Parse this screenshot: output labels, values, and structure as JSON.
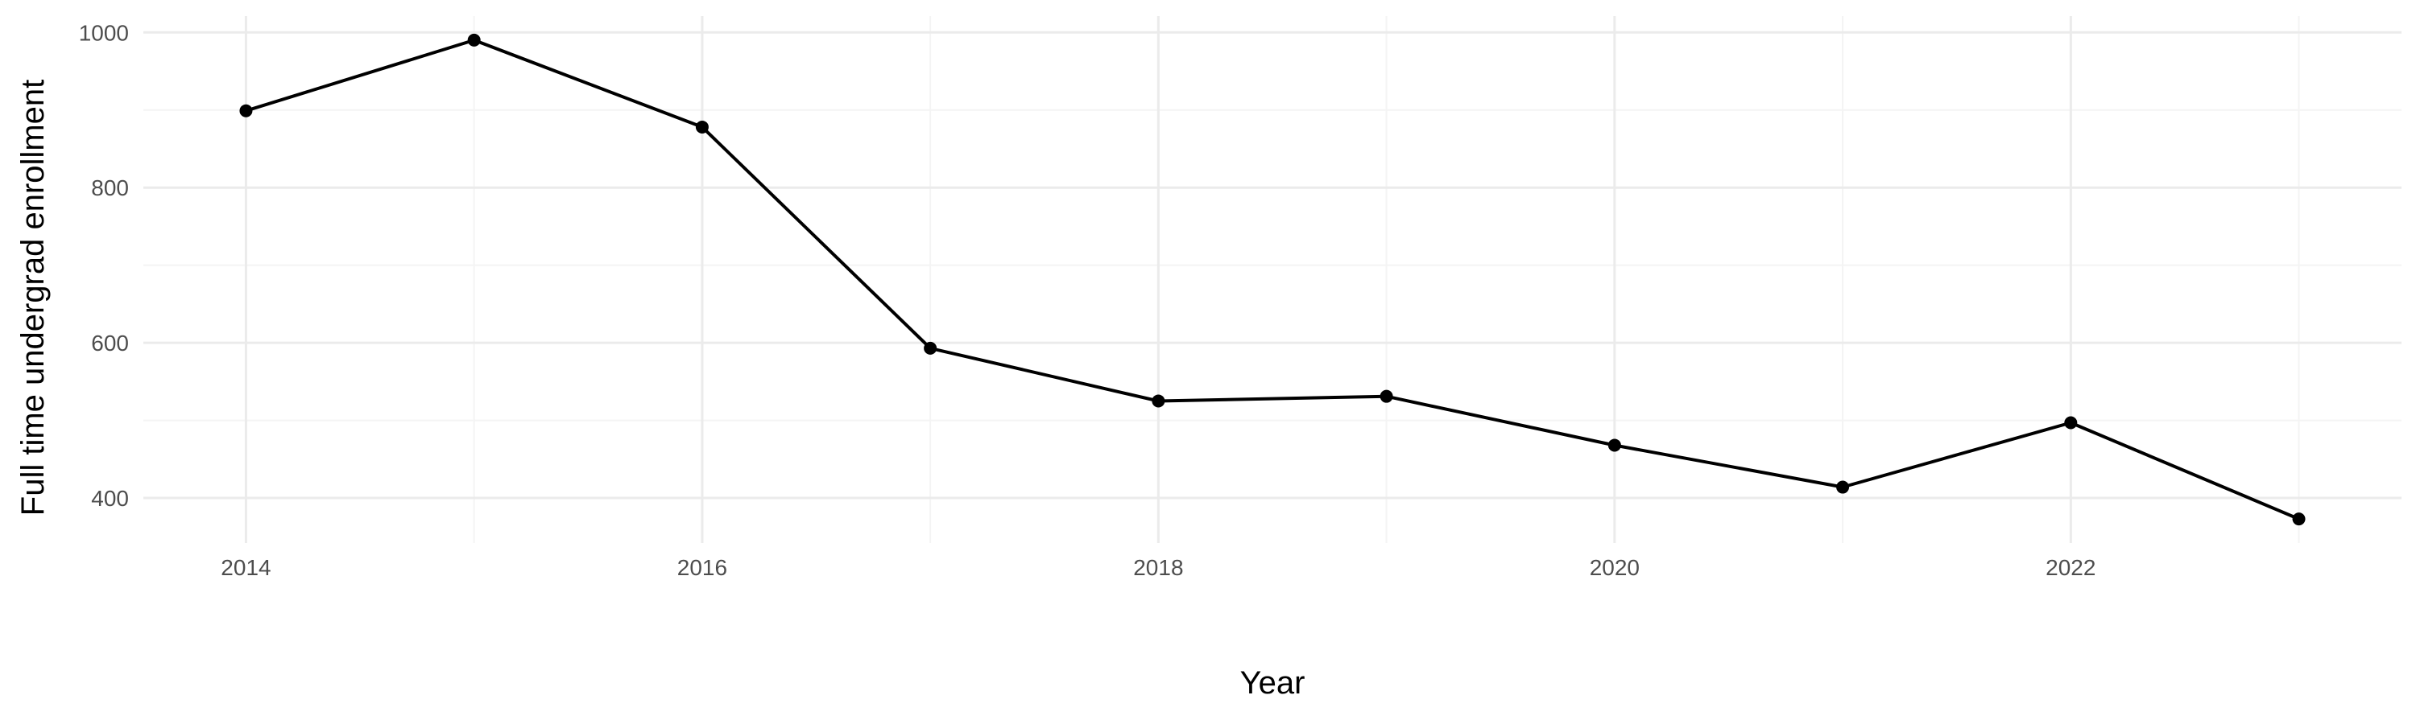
{
  "chart_data": {
    "type": "line",
    "title": "",
    "xlabel": "Year",
    "ylabel": "Full time undergrad enrollment",
    "x": [
      2014,
      2015,
      2016,
      2017,
      2018,
      2019,
      2020,
      2021,
      2022,
      2023
    ],
    "series": [
      {
        "values": [
          899,
          990,
          878,
          593,
          525,
          531,
          468,
          414,
          497,
          373
        ]
      }
    ],
    "xlim": [
      2013.55,
      2023.45
    ],
    "ylim": [
      342,
      1021
    ],
    "x_ticks": [
      2014,
      2016,
      2018,
      2020,
      2022
    ],
    "x_tick_labels": [
      "2014",
      "2016",
      "2018",
      "2020",
      "2022"
    ],
    "y_ticks": [
      400,
      600,
      800,
      1000
    ],
    "y_tick_labels": [
      "400",
      "600",
      "800",
      "1000"
    ],
    "grid": true,
    "legend": "none",
    "colors": {
      "line": "#000000",
      "point": "#000000",
      "grid_major": "#ebebeb",
      "grid_minor": "#f4f4f4",
      "tick_text": "#4d4d4d"
    }
  }
}
